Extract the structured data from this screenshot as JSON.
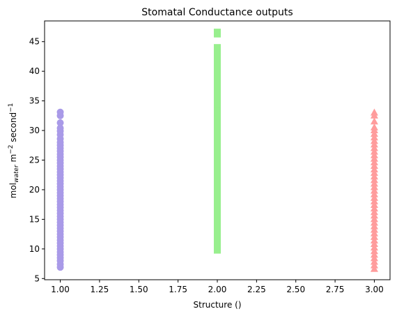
{
  "chart_data": {
    "type": "scatter",
    "title": "Stomatal Conductance outputs",
    "xlabel": "Structure ()",
    "ylabel": {
      "base": "mol",
      "subscript": "water",
      "unit1": " m",
      "exp1": "−2",
      "unit2": " second",
      "exp2": "−1"
    },
    "xlim": [
      0.9,
      3.1
    ],
    "ylim": [
      4.8,
      48.5
    ],
    "xticks": [
      1.0,
      1.25,
      1.5,
      1.75,
      2.0,
      2.25,
      2.5,
      2.75,
      3.0
    ],
    "xtick_labels": [
      "1.00",
      "1.25",
      "1.50",
      "1.75",
      "2.00",
      "2.25",
      "2.50",
      "2.75",
      "3.00"
    ],
    "yticks": [
      5,
      10,
      15,
      20,
      25,
      30,
      35,
      40,
      45
    ],
    "ytick_labels": [
      "5",
      "10",
      "15",
      "20",
      "25",
      "30",
      "35",
      "40",
      "45"
    ],
    "grid": false,
    "legend": "none",
    "series": [
      {
        "x": 1,
        "marker": "circle",
        "color": "#a99ae8",
        "y": [
          6.9,
          7.4,
          8.0,
          8.5,
          9.0,
          9.5,
          10.0,
          10.5,
          11.0,
          11.5,
          12.0,
          12.5,
          13.0,
          13.5,
          14.0,
          14.5,
          15.0,
          15.5,
          16.0,
          16.5,
          17.0,
          17.5,
          18.0,
          18.5,
          19.0,
          19.5,
          20.0,
          20.5,
          21.0,
          21.5,
          22.0,
          22.5,
          23.0,
          23.5,
          24.0,
          24.5,
          25.0,
          25.5,
          26.0,
          26.5,
          27.0,
          27.5,
          28.0,
          28.6,
          29.3,
          29.9,
          30.4,
          31.3,
          32.5,
          33.1
        ]
      },
      {
        "x": 2,
        "marker": "square",
        "color": "#98ef8e",
        "y": [
          9.8,
          10.5,
          11.2,
          12.0,
          12.8,
          13.6,
          14.4,
          15.2,
          16.0,
          16.8,
          17.6,
          18.4,
          19.2,
          20.0,
          20.8,
          21.6,
          22.4,
          23.2,
          24.0,
          24.8,
          25.6,
          26.4,
          27.2,
          28.0,
          28.8,
          29.6,
          30.4,
          31.2,
          32.0,
          32.8,
          33.6,
          34.4,
          35.2,
          36.0,
          36.8,
          37.6,
          38.4,
          39.2,
          40.0,
          40.8,
          41.6,
          42.3,
          43.2,
          44.0,
          46.3,
          46.6
        ]
      },
      {
        "x": 3,
        "marker": "triangle",
        "color": "#ff9c9c",
        "y": [
          6.6,
          7.2,
          7.8,
          8.4,
          9.0,
          9.6,
          10.2,
          10.8,
          11.4,
          12.0,
          12.6,
          13.2,
          13.8,
          14.4,
          15.0,
          15.6,
          16.2,
          16.8,
          17.4,
          18.0,
          18.6,
          19.2,
          19.8,
          20.4,
          21.0,
          21.6,
          22.2,
          22.8,
          23.4,
          24.0,
          24.6,
          25.2,
          25.8,
          26.4,
          27.0,
          27.6,
          28.2,
          28.8,
          29.4,
          30.0,
          30.5,
          31.5,
          32.5,
          33.0
        ]
      }
    ]
  }
}
